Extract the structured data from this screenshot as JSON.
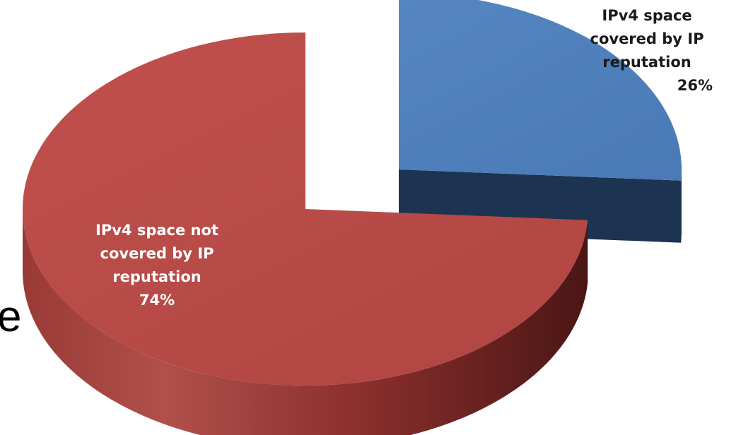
{
  "chart_data": {
    "type": "pie",
    "style": "3d-exploded",
    "legend": "none",
    "slices": [
      {
        "label_lines": [
          "IPv4 space not",
          "covered by IP",
          "reputation"
        ],
        "value": 74,
        "value_label": "74%",
        "color": "#b94a48",
        "side_color": "#8a2f2d"
      },
      {
        "label_lines": [
          "IPv4 space",
          "covered by IP",
          "reputation"
        ],
        "value": 26,
        "value_label": "26%",
        "color": "#4f81bd",
        "side_color": "#1f3a5f"
      }
    ]
  },
  "edge_text": "e"
}
